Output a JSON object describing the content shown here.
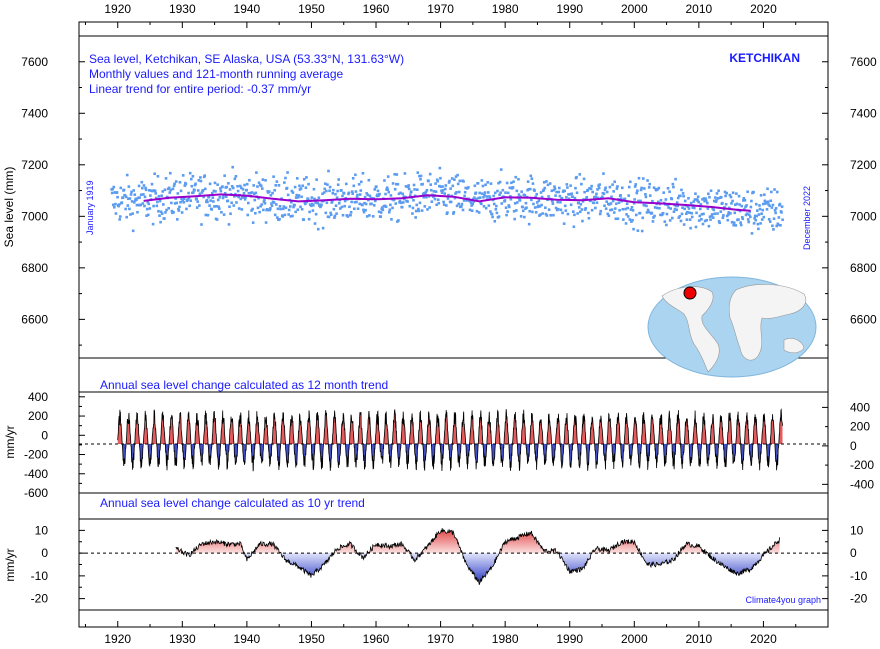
{
  "chart_data": [
    {
      "type": "scatter",
      "panel": "main",
      "title_lines": [
        "Sea level, Ketchikan, SE Alaska, USA (53.33°N, 131.63°W)",
        "Monthly values and 121-month running average",
        "Linear trend for entire period: -0.37 mm/yr"
      ],
      "station_label": "KETCHIKAN",
      "start_label": "January 1919",
      "end_label": "December 2022",
      "ylabel": "Sea level (mm)",
      "xlim": [
        1914,
        2030
      ],
      "ylim": [
        6450,
        7700
      ],
      "yticks": [
        6600,
        6800,
        7000,
        7200,
        7400,
        7600
      ],
      "xticks": [
        1920,
        1930,
        1940,
        1950,
        1960,
        1970,
        1980,
        1990,
        2000,
        2010,
        2020
      ],
      "series": [
        {
          "kind": "monthly_points",
          "color": "#5b9bf0",
          "x_start": 1919.04,
          "x_end": 2022.96,
          "center_mm": 7070,
          "spread_mm": 115
        },
        {
          "kind": "running_average",
          "color": "#9900cc",
          "x": [
            1924,
            1928,
            1932,
            1936,
            1940,
            1944,
            1948,
            1952,
            1956,
            1960,
            1964,
            1968,
            1972,
            1976,
            1980,
            1984,
            1988,
            1992,
            1996,
            2000,
            2004,
            2008,
            2012,
            2016,
            2018
          ],
          "y": [
            7060,
            7072,
            7078,
            7085,
            7080,
            7068,
            7058,
            7062,
            7068,
            7066,
            7070,
            7082,
            7076,
            7058,
            7074,
            7072,
            7064,
            7062,
            7070,
            7055,
            7050,
            7044,
            7036,
            7025,
            7022
          ]
        }
      ]
    },
    {
      "type": "area",
      "panel": "annual-12-month",
      "title": "Annual sea level change calculated as 12 month trend",
      "ylabel": "mm/yr",
      "ylim": [
        -600,
        450
      ],
      "yticks_left": [
        400,
        200,
        0,
        -200,
        -400,
        -600
      ],
      "yticks_right": [
        400,
        0,
        -400
      ],
      "right_zero_offset": -110,
      "baseline": -90,
      "x_start": 1920,
      "x_end": 2023,
      "cycle_years": 1.33,
      "amplitude": 270,
      "positive_color": "#e04040",
      "negative_color": "#2030c0"
    },
    {
      "type": "area",
      "panel": "decadal-10-yr",
      "title": "Annual sea level change calculated as 10 yr trend",
      "ylabel": "mm/yr",
      "ylim": [
        -25,
        15
      ],
      "yticks": [
        10,
        0,
        -10,
        -20
      ],
      "baseline": 0,
      "positive_color": "#e04040",
      "negative_color": "#2030c0",
      "x": [
        1929,
        1931,
        1933,
        1935,
        1937,
        1939,
        1940,
        1942,
        1944,
        1946,
        1948,
        1950,
        1952,
        1954,
        1956,
        1958,
        1960,
        1962,
        1964,
        1966,
        1968,
        1970,
        1972,
        1974,
        1976,
        1978,
        1980,
        1982,
        1984,
        1986,
        1988,
        1990,
        1992,
        1994,
        1996,
        1998,
        2000,
        2002,
        2004,
        2006,
        2008,
        2010,
        2012,
        2014,
        2016,
        2018,
        2020,
        2022.5
      ],
      "y": [
        2,
        -1,
        4,
        5,
        4,
        4,
        -3,
        4,
        4,
        -3,
        -6,
        -10,
        -5,
        2,
        4,
        -2,
        4,
        3,
        4,
        -3,
        3,
        10,
        9,
        -5,
        -13,
        -6,
        5,
        7,
        9,
        1,
        1,
        -8,
        -7,
        2,
        1,
        5,
        5,
        -5,
        -5,
        -3,
        4,
        3,
        -2,
        -6,
        -9,
        -7,
        -1,
        6
      ]
    }
  ],
  "credit": "Climate4you graph"
}
